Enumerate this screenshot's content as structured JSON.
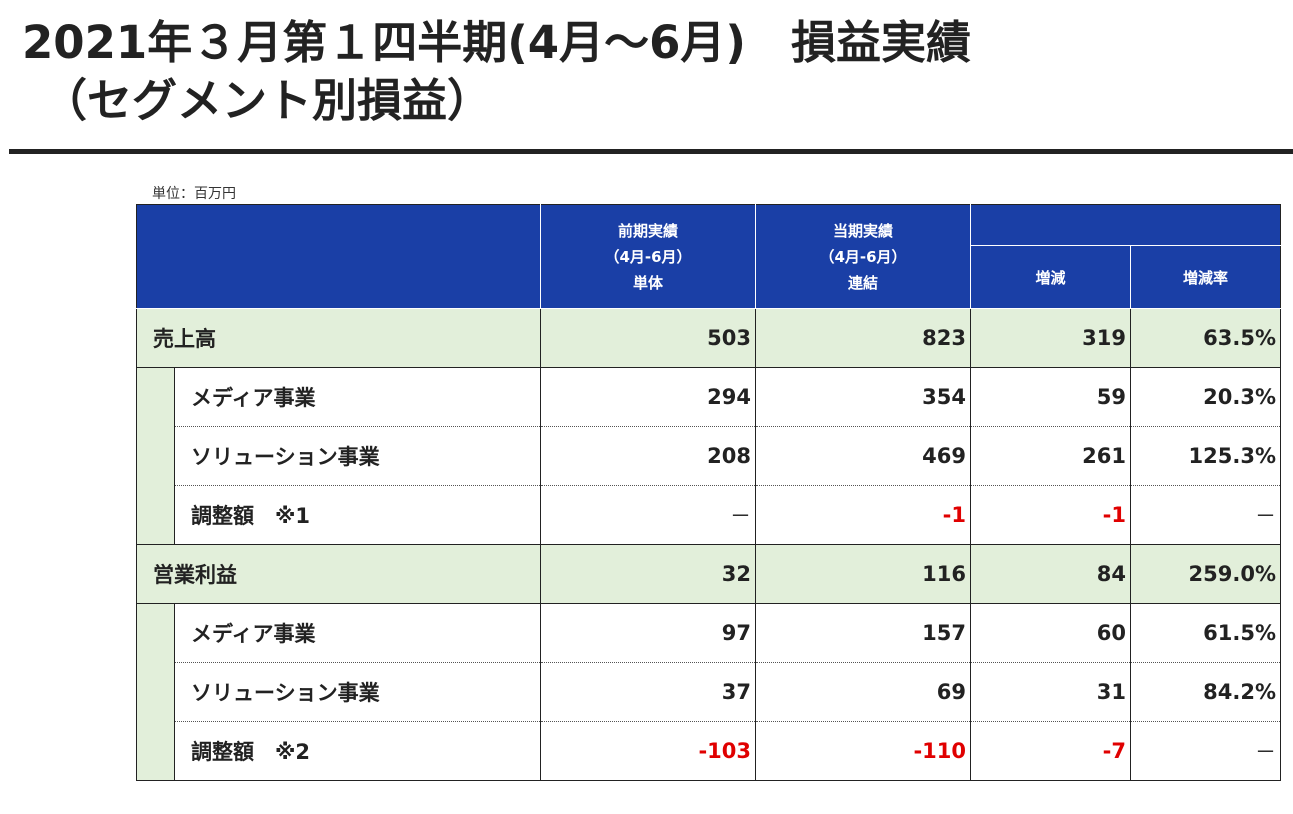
{
  "title": {
    "line1": "2021年３月第１四半期(4月～6月)　損益実績",
    "line2": "（セグメント別損益）"
  },
  "unit_label": "単位：百万円",
  "headers": {
    "prev": [
      "前期実績",
      "（4月-6月）",
      "単体"
    ],
    "curr": [
      "当期実績",
      "（4月-6月）",
      "連結"
    ],
    "change": "増減",
    "change_rate": "増減率"
  },
  "rows": [
    {
      "label": "売上高",
      "prev": "503",
      "curr": "823",
      "change": "319",
      "rate": "63.5%"
    },
    {
      "label": "メディア事業",
      "prev": "294",
      "curr": "354",
      "change": "59",
      "rate": "20.3%"
    },
    {
      "label": "ソリューション事業",
      "prev": "208",
      "curr": "469",
      "change": "261",
      "rate": "125.3%"
    },
    {
      "label": "調整額　※1",
      "prev": "－",
      "curr": "-1",
      "change": "-1",
      "rate": "－"
    },
    {
      "label": "営業利益",
      "prev": "32",
      "curr": "116",
      "change": "84",
      "rate": "259.0%"
    },
    {
      "label": "メディア事業",
      "prev": "97",
      "curr": "157",
      "change": "60",
      "rate": "61.5%"
    },
    {
      "label": "ソリューション事業",
      "prev": "37",
      "curr": "69",
      "change": "31",
      "rate": "84.2%"
    },
    {
      "label": "調整額　※2",
      "prev": "-103",
      "curr": "-110",
      "change": "-7",
      "rate": "－"
    }
  ],
  "colors": {
    "header_bg": "#1a3fa6",
    "main_row_bg": "#e2efda",
    "negative_text": "#e00000"
  }
}
